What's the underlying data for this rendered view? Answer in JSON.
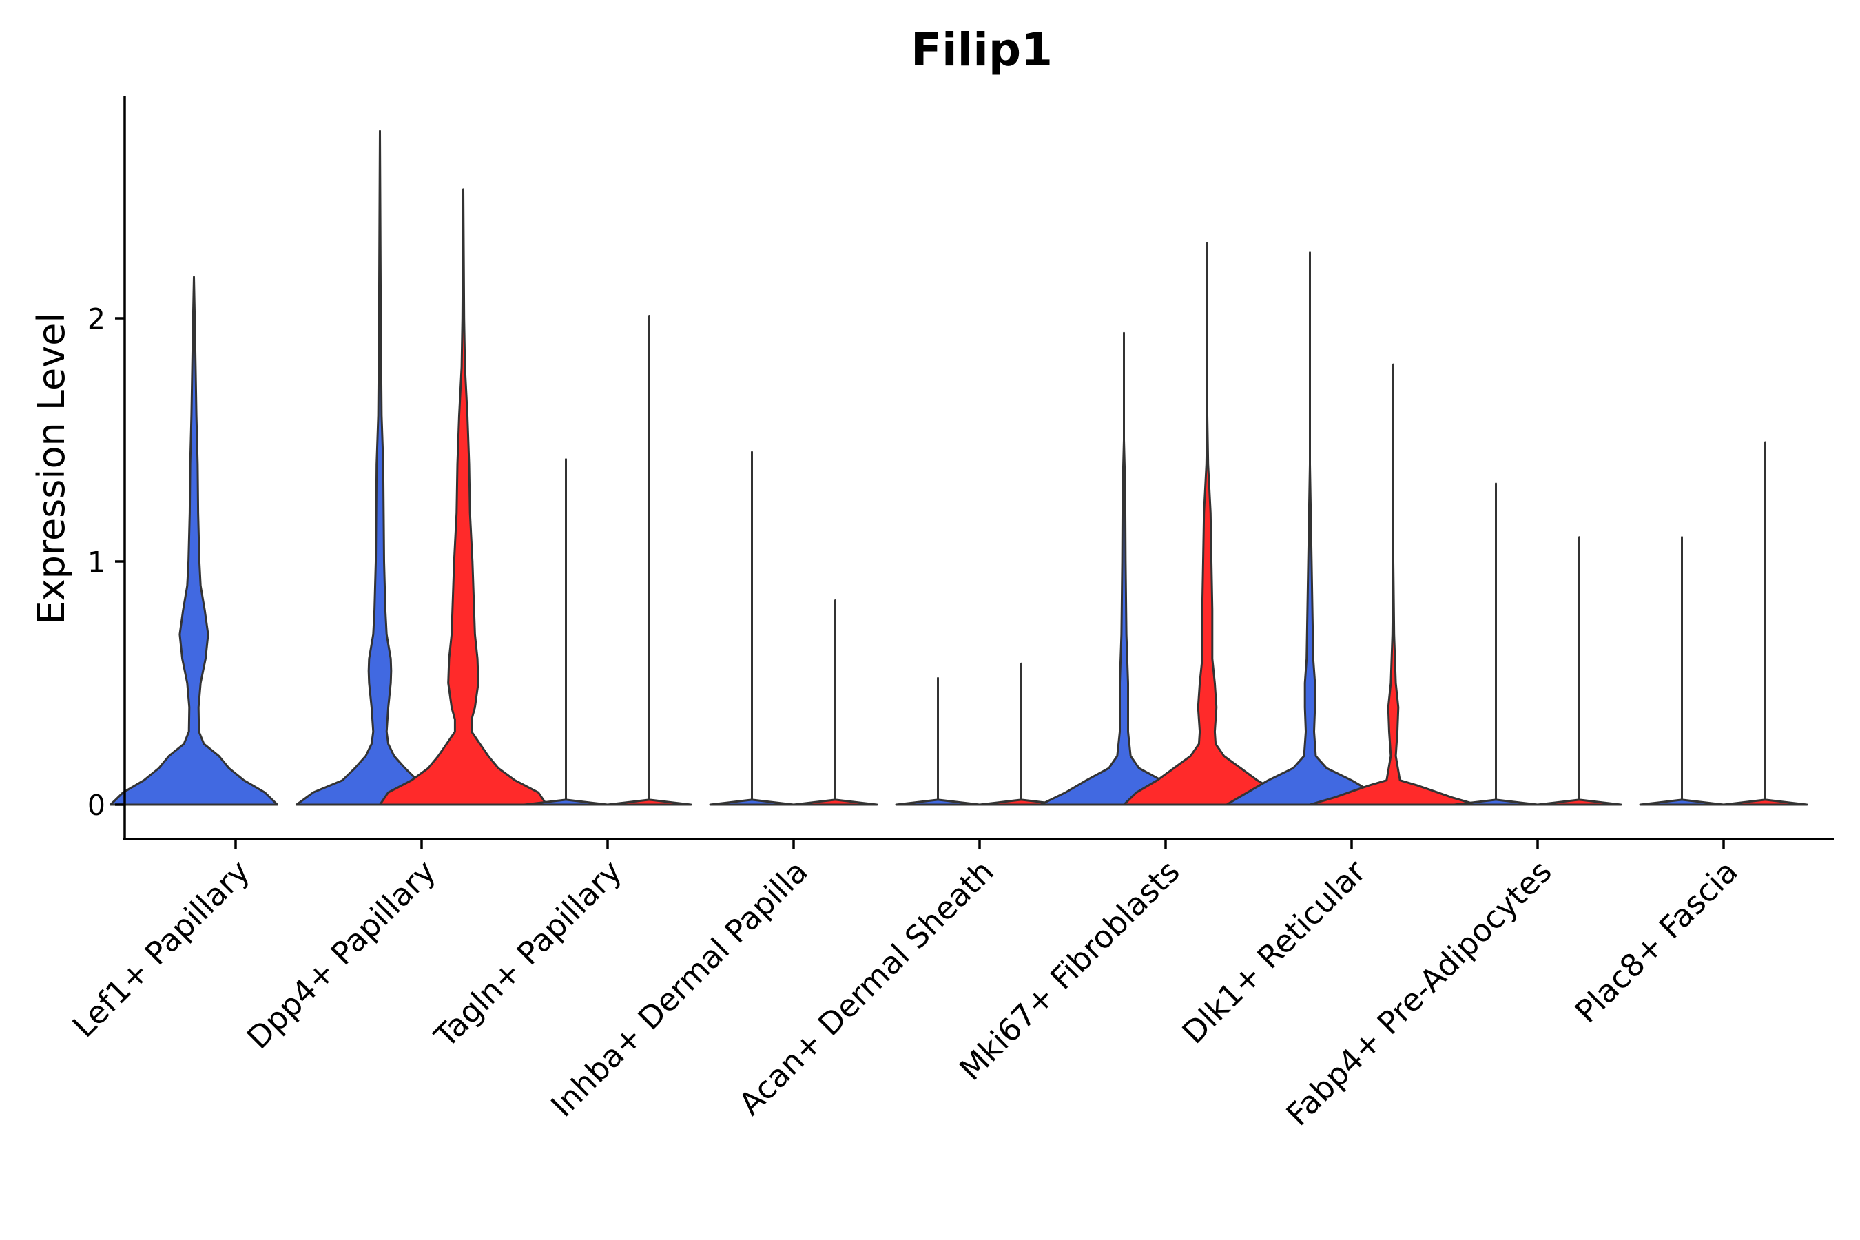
{
  "chart_data": {
    "type": "violin",
    "title": "Filip1",
    "xlabel": "",
    "ylabel": "Expression Level",
    "ylim": [
      -0.14,
      2.9
    ],
    "yticks": [
      0,
      1,
      2
    ],
    "grid": false,
    "legend": "none",
    "colors": {
      "group_a": "#4169E1",
      "group_b": "#FF2A2A",
      "outline": "#333333"
    },
    "categories": [
      "Lef1+ Papillary",
      "Dpp4+ Papillary",
      "Tagln+ Papillary",
      "Inhba+ Dermal Papilla",
      "Acan+ Dermal Sheath",
      "Mki67+ Fibroblasts",
      "Dlk1+ Reticular",
      "Fabp4+ Pre-Adipocytes",
      "Plac8+ Fascia"
    ],
    "violins": [
      {
        "category": "Lef1+ Papillary",
        "group": "a",
        "max": 2.17,
        "profile": [
          [
            0,
            1.0
          ],
          [
            0.05,
            0.85
          ],
          [
            0.1,
            0.6
          ],
          [
            0.15,
            0.42
          ],
          [
            0.2,
            0.3
          ],
          [
            0.25,
            0.12
          ],
          [
            0.3,
            0.06
          ],
          [
            0.4,
            0.055
          ],
          [
            0.5,
            0.08
          ],
          [
            0.6,
            0.14
          ],
          [
            0.7,
            0.17
          ],
          [
            0.8,
            0.13
          ],
          [
            0.9,
            0.08
          ],
          [
            1.0,
            0.065
          ],
          [
            1.2,
            0.05
          ],
          [
            1.4,
            0.045
          ],
          [
            1.6,
            0.03
          ],
          [
            1.8,
            0.02
          ],
          [
            2.0,
            0.01
          ],
          [
            2.17,
            0.0
          ]
        ]
      },
      {
        "category": "Dpp4+ Papillary",
        "group": "a",
        "max": 2.77,
        "profile": [
          [
            0,
            1.0
          ],
          [
            0.05,
            0.8
          ],
          [
            0.1,
            0.45
          ],
          [
            0.15,
            0.3
          ],
          [
            0.2,
            0.17
          ],
          [
            0.25,
            0.1
          ],
          [
            0.3,
            0.08
          ],
          [
            0.4,
            0.1
          ],
          [
            0.5,
            0.13
          ],
          [
            0.55,
            0.135
          ],
          [
            0.6,
            0.13
          ],
          [
            0.7,
            0.08
          ],
          [
            0.8,
            0.065
          ],
          [
            1.0,
            0.05
          ],
          [
            1.2,
            0.045
          ],
          [
            1.4,
            0.04
          ],
          [
            1.6,
            0.02
          ],
          [
            2.0,
            0.01
          ],
          [
            2.4,
            0.005
          ],
          [
            2.77,
            0.0
          ]
        ]
      },
      {
        "category": "Dpp4+ Papillary",
        "group": "b",
        "max": 2.53,
        "profile": [
          [
            0,
            1.0
          ],
          [
            0.05,
            0.9
          ],
          [
            0.1,
            0.62
          ],
          [
            0.15,
            0.42
          ],
          [
            0.2,
            0.3
          ],
          [
            0.25,
            0.2
          ],
          [
            0.3,
            0.1
          ],
          [
            0.35,
            0.1
          ],
          [
            0.4,
            0.14
          ],
          [
            0.5,
            0.18
          ],
          [
            0.6,
            0.17
          ],
          [
            0.7,
            0.14
          ],
          [
            0.8,
            0.13
          ],
          [
            0.9,
            0.12
          ],
          [
            1.0,
            0.11
          ],
          [
            1.2,
            0.08
          ],
          [
            1.4,
            0.07
          ],
          [
            1.6,
            0.05
          ],
          [
            1.8,
            0.02
          ],
          [
            2.0,
            0.01
          ],
          [
            2.53,
            0.0
          ]
        ]
      },
      {
        "category": "Tagln+ Papillary",
        "group": "a",
        "max": 1.42,
        "profile": [
          [
            0,
            0.5
          ],
          [
            0.02,
            0.0
          ]
        ]
      },
      {
        "category": "Tagln+ Papillary",
        "group": "b",
        "max": 2.01,
        "profile": [
          [
            0,
            0.5
          ],
          [
            0.02,
            0.0
          ]
        ]
      },
      {
        "category": "Inhba+ Dermal Papilla",
        "group": "a",
        "max": 1.45,
        "profile": [
          [
            0,
            0.5
          ],
          [
            0.02,
            0.0
          ]
        ]
      },
      {
        "category": "Inhba+ Dermal Papilla",
        "group": "b",
        "max": 0.84,
        "profile": [
          [
            0,
            0.5
          ],
          [
            0.02,
            0.0
          ]
        ]
      },
      {
        "category": "Acan+ Dermal Sheath",
        "group": "a",
        "max": 0.52,
        "profile": [
          [
            0,
            0.5
          ],
          [
            0.02,
            0.0
          ]
        ]
      },
      {
        "category": "Acan+ Dermal Sheath",
        "group": "b",
        "max": 0.58,
        "profile": [
          [
            0,
            0.5
          ],
          [
            0.02,
            0.0
          ]
        ]
      },
      {
        "category": "Mki67+ Fibroblasts",
        "group": "a",
        "max": 1.94,
        "profile": [
          [
            0,
            1.0
          ],
          [
            0.05,
            0.7
          ],
          [
            0.1,
            0.45
          ],
          [
            0.15,
            0.18
          ],
          [
            0.2,
            0.08
          ],
          [
            0.3,
            0.05
          ],
          [
            0.5,
            0.05
          ],
          [
            0.7,
            0.03
          ],
          [
            1.0,
            0.02
          ],
          [
            1.3,
            0.015
          ],
          [
            1.5,
            0.0
          ],
          [
            1.94,
            0.0
          ]
        ]
      },
      {
        "category": "Mki67+ Fibroblasts",
        "group": "b",
        "max": 2.31,
        "profile": [
          [
            0,
            1.0
          ],
          [
            0.05,
            0.85
          ],
          [
            0.1,
            0.6
          ],
          [
            0.15,
            0.4
          ],
          [
            0.2,
            0.2
          ],
          [
            0.25,
            0.1
          ],
          [
            0.3,
            0.09
          ],
          [
            0.35,
            0.1
          ],
          [
            0.4,
            0.11
          ],
          [
            0.5,
            0.09
          ],
          [
            0.6,
            0.06
          ],
          [
            0.8,
            0.06
          ],
          [
            1.0,
            0.05
          ],
          [
            1.2,
            0.04
          ],
          [
            1.4,
            0.01
          ],
          [
            1.6,
            0.0
          ],
          [
            2.31,
            0.0
          ]
        ]
      },
      {
        "category": "Dlk1+ Reticular",
        "group": "a",
        "max": 2.27,
        "profile": [
          [
            0,
            1.0
          ],
          [
            0.05,
            0.75
          ],
          [
            0.1,
            0.5
          ],
          [
            0.15,
            0.2
          ],
          [
            0.2,
            0.07
          ],
          [
            0.3,
            0.05
          ],
          [
            0.4,
            0.06
          ],
          [
            0.5,
            0.06
          ],
          [
            0.6,
            0.04
          ],
          [
            0.8,
            0.03
          ],
          [
            1.0,
            0.02
          ],
          [
            1.4,
            0.0
          ],
          [
            2.27,
            0.0
          ]
        ]
      },
      {
        "category": "Dlk1+ Reticular",
        "group": "b",
        "max": 1.81,
        "profile": [
          [
            0,
            1.0
          ],
          [
            0.03,
            0.7
          ],
          [
            0.06,
            0.45
          ],
          [
            0.08,
            0.28
          ],
          [
            0.1,
            0.08
          ],
          [
            0.2,
            0.03
          ],
          [
            0.3,
            0.05
          ],
          [
            0.4,
            0.06
          ],
          [
            0.5,
            0.03
          ],
          [
            0.7,
            0.01
          ],
          [
            1.0,
            0.0
          ],
          [
            1.81,
            0.0
          ]
        ]
      },
      {
        "category": "Fabp4+ Pre-Adipocytes",
        "group": "a",
        "max": 1.32,
        "profile": [
          [
            0,
            0.5
          ],
          [
            0.02,
            0.0
          ]
        ]
      },
      {
        "category": "Fabp4+ Pre-Adipocytes",
        "group": "b",
        "max": 1.1,
        "profile": [
          [
            0,
            0.5
          ],
          [
            0.02,
            0.0
          ]
        ]
      },
      {
        "category": "Plac8+ Fascia",
        "group": "a",
        "max": 1.1,
        "profile": [
          [
            0,
            0.5
          ],
          [
            0.02,
            0.0
          ]
        ]
      },
      {
        "category": "Plac8+ Fascia",
        "group": "b",
        "max": 1.49,
        "profile": [
          [
            0,
            0.5
          ],
          [
            0.02,
            0.0
          ]
        ]
      }
    ]
  }
}
